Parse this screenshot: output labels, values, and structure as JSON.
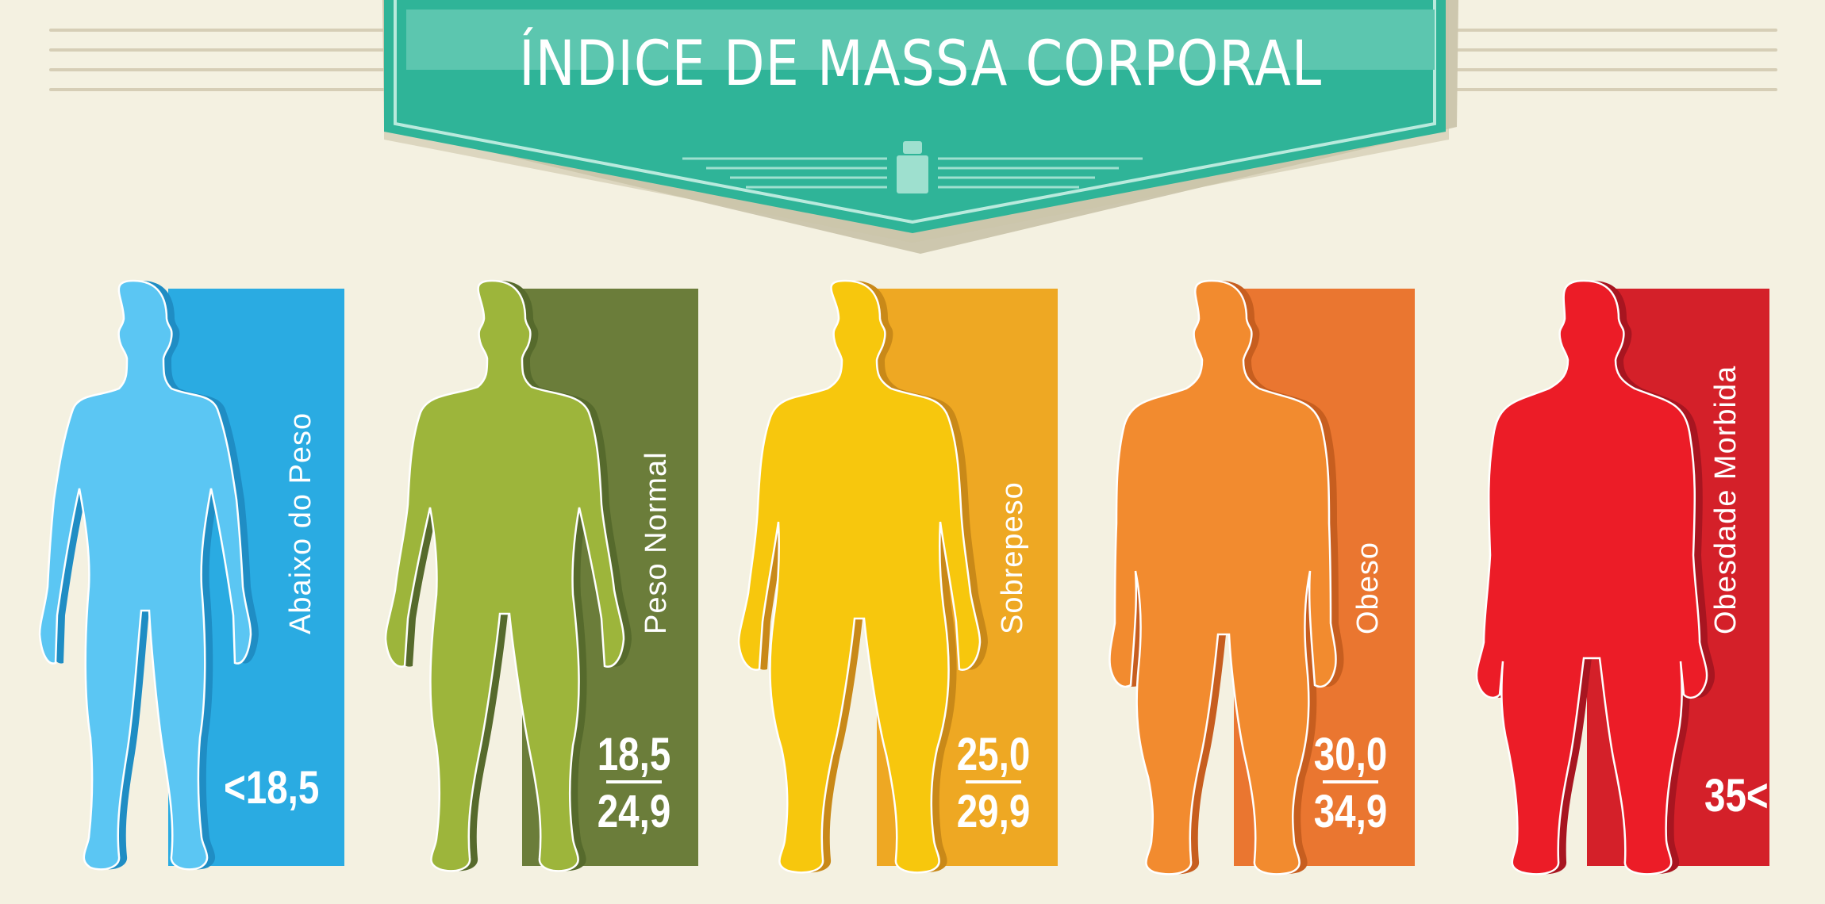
{
  "title": "ÍNDICE DE MASSA CORPORAL",
  "colors": {
    "background": "#f4f1e1",
    "banner": "#2fb498",
    "banner_light": "#5cc6af",
    "under_weight": "#5bc6f3",
    "under_weight_panel": "#2aabe2",
    "normal": "#9db53b",
    "normal_panel": "#6b7d3a",
    "overweight": "#f7c70d",
    "overweight_panel": "#eea823",
    "obese": "#f28b2f",
    "obese_panel": "#ea7630",
    "morbid": "#ec1c27",
    "morbid_panel": "#d42029"
  },
  "categories": [
    {
      "label": "Abaixo do Peso",
      "value": "<18,5"
    },
    {
      "label": "Peso Normal",
      "value_top": "18,5",
      "value_bottom": "24,9"
    },
    {
      "label": "Sobrepeso",
      "value_top": "25,0",
      "value_bottom": "29,9"
    },
    {
      "label": "Obeso",
      "value_top": "30,0",
      "value_bottom": "34,9"
    },
    {
      "label": "Obesdade Morbida",
      "value": "35<"
    }
  ]
}
